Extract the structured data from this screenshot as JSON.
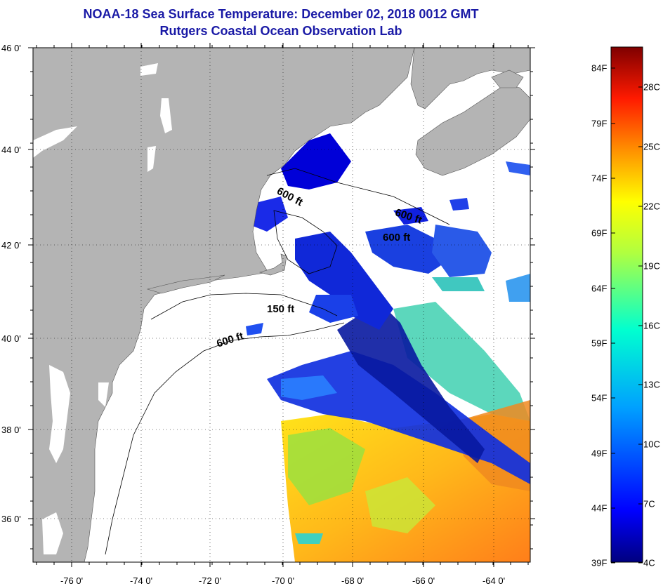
{
  "title": {
    "line1": "NOAA-18 Sea Surface Temperature:  December 02, 2018 0012 GMT",
    "line2": "Rutgers Coastal Ocean Observation Lab"
  },
  "map": {
    "lat_labels": [
      "46 0'",
      "44 0'",
      "42 0'",
      "40 0'",
      "38 0'",
      "36 0'"
    ],
    "lon_labels": [
      "-76 0'",
      "-74 0'",
      "-72 0'",
      "-70 0'",
      "-68 0'",
      "-66 0'",
      "-64 0'"
    ],
    "contour_labels": [
      "600 ft",
      "600 ft",
      "600 ft",
      "150 ft",
      "600 ft"
    ],
    "land_color": "#b4b4b4",
    "ocean_color": "#ffffff"
  },
  "colorbar": {
    "fahrenheit_labels": [
      "84F",
      "79F",
      "74F",
      "69F",
      "64F",
      "59F",
      "54F",
      "49F",
      "44F",
      "39F"
    ],
    "celsius_labels": [
      "28C",
      "25C",
      "22C",
      "19C",
      "16C",
      "13C",
      "10C",
      "7C",
      "4C"
    ],
    "range_f": [
      39,
      86
    ],
    "colors": [
      "#00007f",
      "#0000ff",
      "#007fff",
      "#00ffff",
      "#7fff7f",
      "#ffff00",
      "#ff7f00",
      "#ff0000",
      "#7f0000"
    ]
  }
}
